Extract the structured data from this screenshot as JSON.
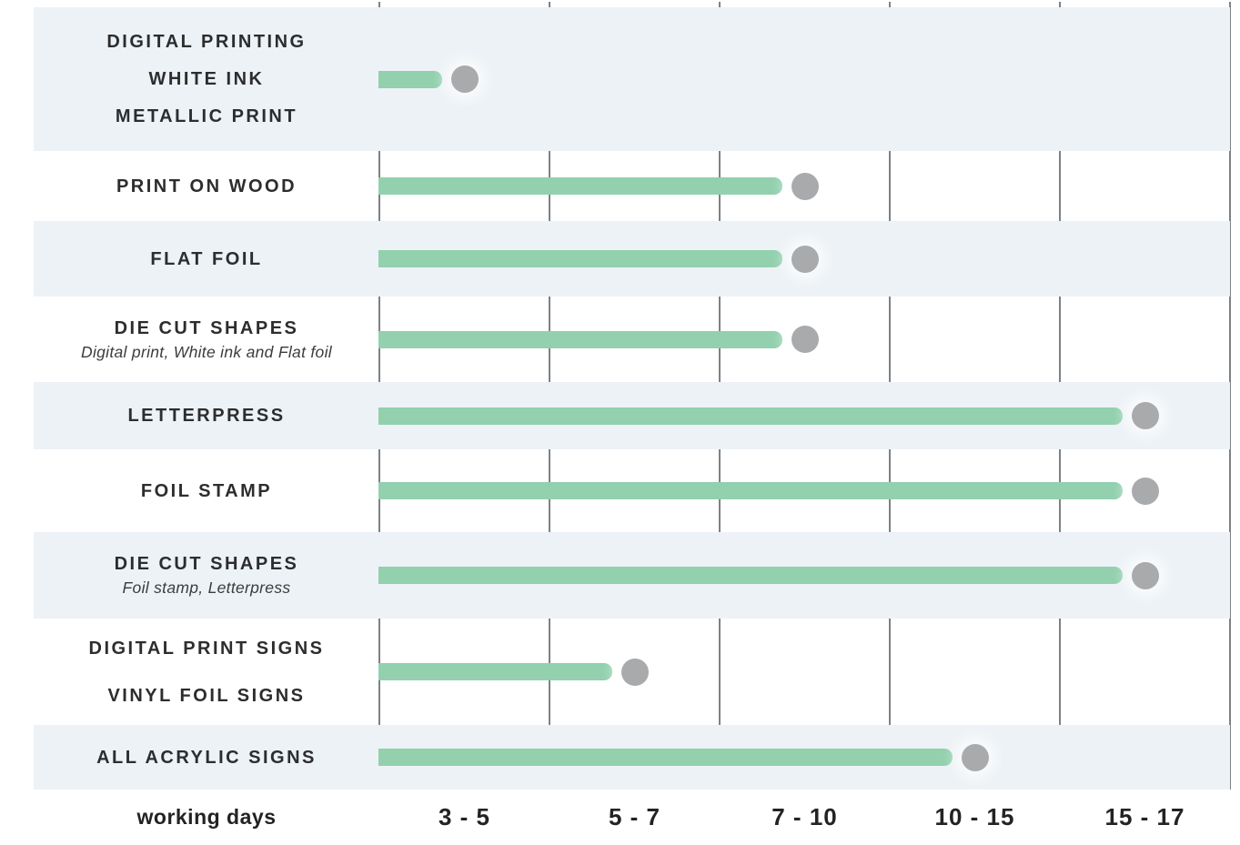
{
  "chart_data": {
    "type": "bar",
    "orientation": "horizontal",
    "title": "",
    "xlabel": "working days",
    "ylabel": "",
    "grid": "vertical",
    "legend_position": "none",
    "categories": [
      "3 - 5",
      "5 - 7",
      "7 - 10",
      "10 - 15",
      "15 - 17"
    ],
    "rows": [
      {
        "labels": [
          "DIGITAL PRINTING",
          "WHITE INK",
          "METALLIC PRINT"
        ],
        "subtitle": "",
        "working_days": "3 - 5",
        "bucket": 0,
        "shaded": true
      },
      {
        "labels": [
          "PRINT ON WOOD"
        ],
        "subtitle": "",
        "working_days": "7 - 10",
        "bucket": 2,
        "shaded": false
      },
      {
        "labels": [
          "FLAT FOIL"
        ],
        "subtitle": "",
        "working_days": "7 - 10",
        "bucket": 2,
        "shaded": true
      },
      {
        "labels": [
          "DIE CUT SHAPES"
        ],
        "subtitle": "Digital print, White ink and Flat foil",
        "working_days": "7 - 10",
        "bucket": 2,
        "shaded": false
      },
      {
        "labels": [
          "LETTERPRESS"
        ],
        "subtitle": "",
        "working_days": "15 - 17",
        "bucket": 4,
        "shaded": true
      },
      {
        "labels": [
          "FOIL STAMP"
        ],
        "subtitle": "",
        "working_days": "15 - 17",
        "bucket": 4,
        "shaded": false
      },
      {
        "labels": [
          "DIE CUT SHAPES"
        ],
        "subtitle": "Foil stamp, Letterpress",
        "working_days": "15 - 17",
        "bucket": 4,
        "shaded": true
      },
      {
        "labels": [
          "DIGITAL PRINT SIGNS",
          "VINYL FOIL SIGNS"
        ],
        "subtitle": "",
        "working_days": "5 - 7",
        "bucket": 1,
        "shaded": false
      },
      {
        "labels": [
          "ALL ACRYLIC SIGNS"
        ],
        "subtitle": "",
        "working_days": "10 - 15",
        "bucket": 3,
        "shaded": true
      }
    ],
    "colors": {
      "bar": "#92d0ae",
      "dot": "#a8aaac",
      "band": "#edf2f6",
      "gridline": "#7e8184",
      "text": "#2c2d2e"
    }
  }
}
